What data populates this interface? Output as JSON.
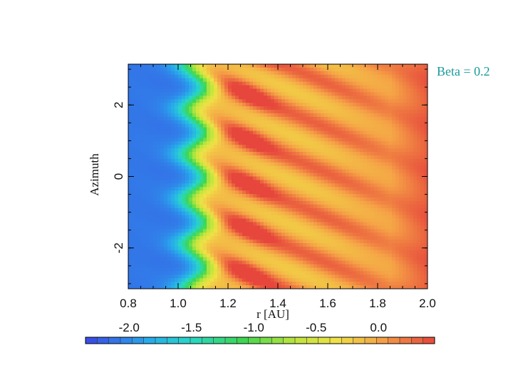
{
  "annotation": "Beta = 0.2",
  "chart_data": {
    "type": "heatmap",
    "title": "",
    "xlabel": "r [AU]",
    "ylabel": "Azimuth",
    "xlim": [
      0.8,
      2.0
    ],
    "ylim": [
      -3.14159,
      3.14159
    ],
    "x_ticks": [
      {
        "value": 0.8,
        "label": "0.8"
      },
      {
        "value": 1.0,
        "label": "1.0"
      },
      {
        "value": 1.2,
        "label": "1.2"
      },
      {
        "value": 1.4,
        "label": "1.4"
      },
      {
        "value": 1.6,
        "label": "1.6"
      },
      {
        "value": 1.8,
        "label": "1.8"
      },
      {
        "value": 2.0,
        "label": "2.0"
      }
    ],
    "y_ticks": [
      {
        "value": -2,
        "label": "-2"
      },
      {
        "value": 0,
        "label": "0"
      },
      {
        "value": 2,
        "label": "2"
      }
    ],
    "colorbar": {
      "range": [
        -2.35,
        0.45
      ],
      "ticks": [
        {
          "value": -2.0,
          "label": "-2.0"
        },
        {
          "value": -1.5,
          "label": "-1.5"
        },
        {
          "value": -1.0,
          "label": "-1.0"
        },
        {
          "value": -0.5,
          "label": "-0.5"
        },
        {
          "value": 0.0,
          "label": "0.0"
        }
      ],
      "colormap": "rainbow (blue to red)"
    },
    "field_model": {
      "num_arms": 5,
      "arm_peak_r": 1.27,
      "arm_peak_value": 0.3,
      "inner_min_value": -2.1,
      "outer_value": 0.05
    }
  }
}
